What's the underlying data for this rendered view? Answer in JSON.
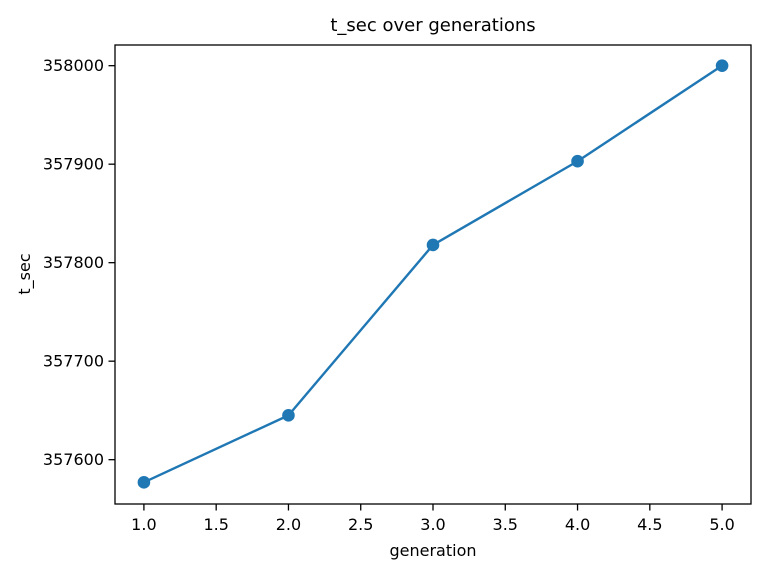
{
  "figure": {
    "background_color": "#ffffff",
    "text_color": "#000000",
    "spine_color": "#000000"
  },
  "chart_data": {
    "type": "line",
    "title": "t_sec over generations",
    "xlabel": "generation",
    "ylabel": "t_sec",
    "x": [
      1,
      2,
      3,
      4,
      5
    ],
    "y": [
      357577,
      357645,
      357818,
      357903,
      358000
    ],
    "xlim": [
      0.8,
      5.2
    ],
    "ylim": [
      357555,
      358021
    ],
    "xticks": [
      1.0,
      1.5,
      2.0,
      2.5,
      3.0,
      3.5,
      4.0,
      4.5,
      5.0
    ],
    "xtick_labels": [
      "1.0",
      "1.5",
      "2.0",
      "2.5",
      "3.0",
      "3.5",
      "4.0",
      "4.5",
      "5.0"
    ],
    "yticks": [
      357600,
      357700,
      357800,
      357900,
      358000
    ],
    "ytick_labels": [
      "357600",
      "357700",
      "357800",
      "357900",
      "358000"
    ],
    "line_color": "#1f77b4",
    "marker": "o",
    "marker_color": "#1f77b4",
    "grid": false,
    "legend": null
  }
}
